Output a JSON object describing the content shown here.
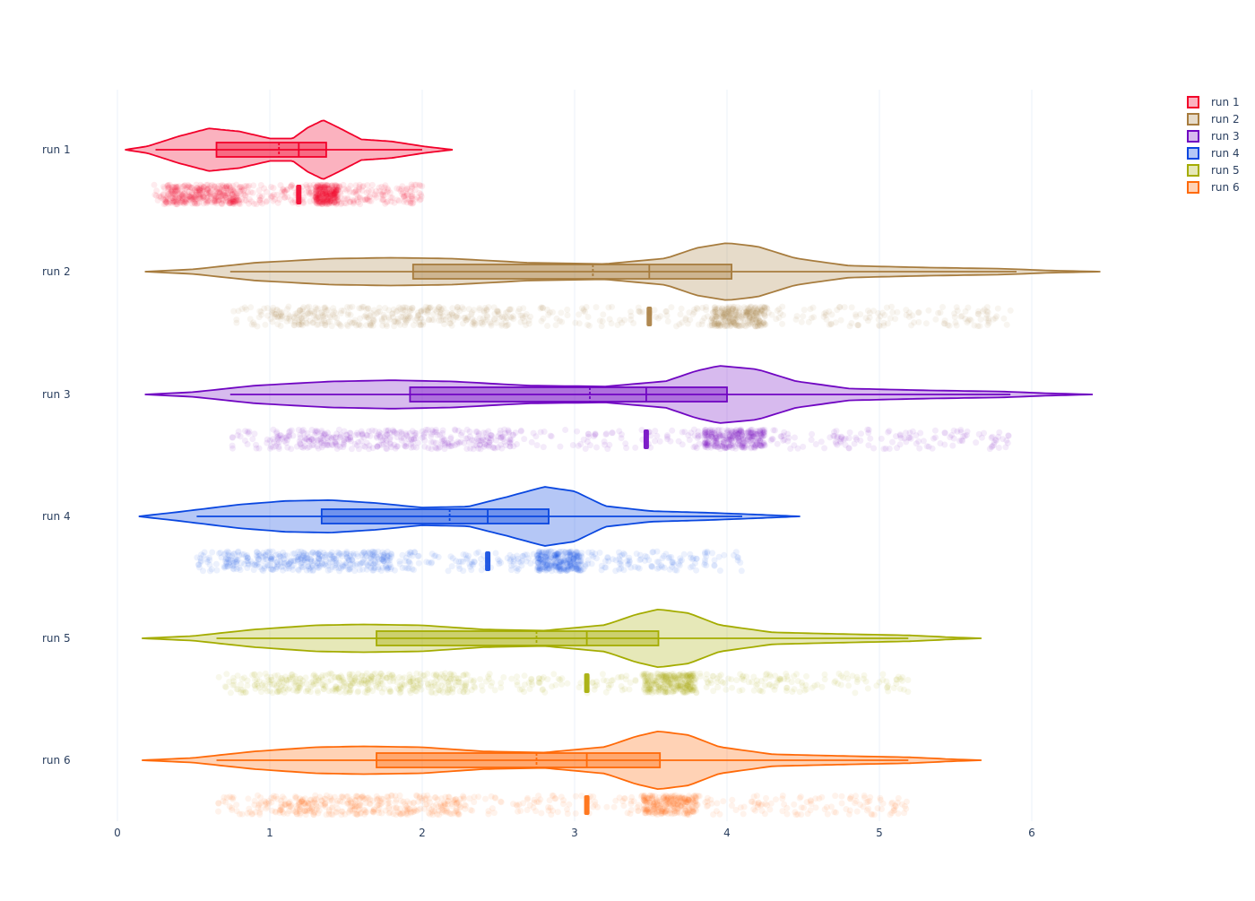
{
  "chart_data": {
    "type": "violin",
    "orientation": "horizontal",
    "xlim": [
      0,
      6.45
    ],
    "x_ticks": [
      0,
      1,
      2,
      3,
      4,
      5,
      6
    ],
    "grid": true,
    "legend_position": "top-right",
    "series": [
      {
        "name": "run 1",
        "color": "#f2002a",
        "fill": "rgba(242,0,42,0.30)",
        "violin_range": [
          0.05,
          2.2
        ],
        "whiskers": [
          0.25,
          2.0
        ],
        "q1": 0.65,
        "median": 1.19,
        "q3": 1.37,
        "mean": 1.06,
        "density": [
          [
            0.05,
            0.0
          ],
          [
            0.2,
            0.12
          ],
          [
            0.4,
            0.45
          ],
          [
            0.6,
            0.72
          ],
          [
            0.8,
            0.62
          ],
          [
            1.0,
            0.38
          ],
          [
            1.15,
            0.38
          ],
          [
            1.25,
            0.75
          ],
          [
            1.35,
            1.0
          ],
          [
            1.45,
            0.75
          ],
          [
            1.6,
            0.35
          ],
          [
            1.8,
            0.28
          ],
          [
            2.0,
            0.12
          ],
          [
            2.2,
            0.0
          ]
        ],
        "points_range": [
          0.24,
          2.0
        ],
        "dense_regions": [
          [
            0.3,
            0.8
          ],
          [
            1.3,
            1.45
          ]
        ]
      },
      {
        "name": "run 2",
        "color": "#a77c3e",
        "fill": "rgba(167,124,62,0.28)",
        "violin_range": [
          0.18,
          6.45
        ],
        "whiskers": [
          0.74,
          5.9
        ],
        "q1": 1.94,
        "median": 3.49,
        "q3": 4.03,
        "mean": 3.12,
        "density": [
          [
            0.18,
            0.0
          ],
          [
            0.5,
            0.08
          ],
          [
            0.9,
            0.3
          ],
          [
            1.4,
            0.44
          ],
          [
            1.8,
            0.47
          ],
          [
            2.2,
            0.44
          ],
          [
            2.7,
            0.3
          ],
          [
            3.2,
            0.26
          ],
          [
            3.6,
            0.45
          ],
          [
            3.8,
            0.8
          ],
          [
            4.0,
            0.97
          ],
          [
            4.2,
            0.85
          ],
          [
            4.45,
            0.45
          ],
          [
            4.8,
            0.2
          ],
          [
            5.3,
            0.14
          ],
          [
            5.8,
            0.1
          ],
          [
            6.1,
            0.04
          ],
          [
            6.45,
            0.0
          ]
        ],
        "points_range": [
          0.74,
          5.9
        ],
        "dense_regions": [
          [
            1.0,
            2.6
          ],
          [
            3.9,
            4.25
          ]
        ]
      },
      {
        "name": "run 3",
        "color": "#7006c2",
        "fill": "rgba(112,6,194,0.28)",
        "violin_range": [
          0.18,
          6.4
        ],
        "whiskers": [
          0.74,
          5.86
        ],
        "q1": 1.92,
        "median": 3.47,
        "q3": 4.0,
        "mean": 3.1,
        "density": [
          [
            0.18,
            0.0
          ],
          [
            0.5,
            0.08
          ],
          [
            0.9,
            0.3
          ],
          [
            1.4,
            0.44
          ],
          [
            1.8,
            0.48
          ],
          [
            2.2,
            0.44
          ],
          [
            2.7,
            0.3
          ],
          [
            3.2,
            0.27
          ],
          [
            3.6,
            0.45
          ],
          [
            3.8,
            0.8
          ],
          [
            3.95,
            0.97
          ],
          [
            4.2,
            0.85
          ],
          [
            4.45,
            0.45
          ],
          [
            4.8,
            0.2
          ],
          [
            5.3,
            0.14
          ],
          [
            5.8,
            0.1
          ],
          [
            6.1,
            0.04
          ],
          [
            6.4,
            0.0
          ]
        ],
        "points_range": [
          0.74,
          5.86
        ],
        "dense_regions": [
          [
            1.0,
            2.6
          ],
          [
            3.85,
            4.25
          ]
        ]
      },
      {
        "name": "run 4",
        "color": "#0a47e0",
        "fill": "rgba(10,71,224,0.30)",
        "violin_range": [
          0.14,
          4.48
        ],
        "whiskers": [
          0.52,
          4.1
        ],
        "q1": 1.34,
        "median": 2.43,
        "q3": 2.83,
        "mean": 2.18,
        "density": [
          [
            0.14,
            0.0
          ],
          [
            0.4,
            0.15
          ],
          [
            0.8,
            0.4
          ],
          [
            1.1,
            0.52
          ],
          [
            1.4,
            0.55
          ],
          [
            1.7,
            0.45
          ],
          [
            2.0,
            0.3
          ],
          [
            2.3,
            0.33
          ],
          [
            2.55,
            0.65
          ],
          [
            2.8,
            1.0
          ],
          [
            3.0,
            0.85
          ],
          [
            3.2,
            0.35
          ],
          [
            3.5,
            0.18
          ],
          [
            3.9,
            0.12
          ],
          [
            4.2,
            0.06
          ],
          [
            4.48,
            0.0
          ]
        ],
        "points_range": [
          0.52,
          4.1
        ],
        "dense_regions": [
          [
            0.7,
            1.8
          ],
          [
            2.75,
            3.05
          ]
        ]
      },
      {
        "name": "run 5",
        "color": "#a4ac00",
        "fill": "rgba(164,172,0,0.28)",
        "violin_range": [
          0.16,
          5.67
        ],
        "whiskers": [
          0.65,
          5.19
        ],
        "q1": 1.7,
        "median": 3.08,
        "q3": 3.55,
        "mean": 2.75,
        "density": [
          [
            0.16,
            0.0
          ],
          [
            0.5,
            0.08
          ],
          [
            0.9,
            0.3
          ],
          [
            1.3,
            0.44
          ],
          [
            1.6,
            0.47
          ],
          [
            2.0,
            0.44
          ],
          [
            2.4,
            0.3
          ],
          [
            2.8,
            0.26
          ],
          [
            3.2,
            0.45
          ],
          [
            3.4,
            0.8
          ],
          [
            3.55,
            0.98
          ],
          [
            3.75,
            0.85
          ],
          [
            3.95,
            0.45
          ],
          [
            4.3,
            0.2
          ],
          [
            4.8,
            0.14
          ],
          [
            5.2,
            0.1
          ],
          [
            5.45,
            0.04
          ],
          [
            5.67,
            0.0
          ]
        ],
        "points_range": [
          0.65,
          5.19
        ],
        "dense_regions": [
          [
            0.9,
            2.3
          ],
          [
            3.45,
            3.8
          ]
        ]
      },
      {
        "name": "run 6",
        "color": "#ff6a09",
        "fill": "rgba(255,106,9,0.30)",
        "violin_range": [
          0.16,
          5.67
        ],
        "whiskers": [
          0.65,
          5.19
        ],
        "q1": 1.7,
        "median": 3.08,
        "q3": 3.56,
        "mean": 2.75,
        "density": [
          [
            0.16,
            0.0
          ],
          [
            0.5,
            0.08
          ],
          [
            0.9,
            0.3
          ],
          [
            1.3,
            0.44
          ],
          [
            1.6,
            0.47
          ],
          [
            2.0,
            0.44
          ],
          [
            2.4,
            0.3
          ],
          [
            2.8,
            0.26
          ],
          [
            3.2,
            0.45
          ],
          [
            3.4,
            0.8
          ],
          [
            3.55,
            0.98
          ],
          [
            3.75,
            0.85
          ],
          [
            3.95,
            0.45
          ],
          [
            4.3,
            0.2
          ],
          [
            4.8,
            0.14
          ],
          [
            5.2,
            0.1
          ],
          [
            5.45,
            0.04
          ],
          [
            5.67,
            0.0
          ]
        ],
        "points_range": [
          0.65,
          5.19
        ],
        "dense_regions": [
          [
            0.9,
            2.3
          ],
          [
            3.45,
            3.8
          ]
        ]
      }
    ]
  }
}
